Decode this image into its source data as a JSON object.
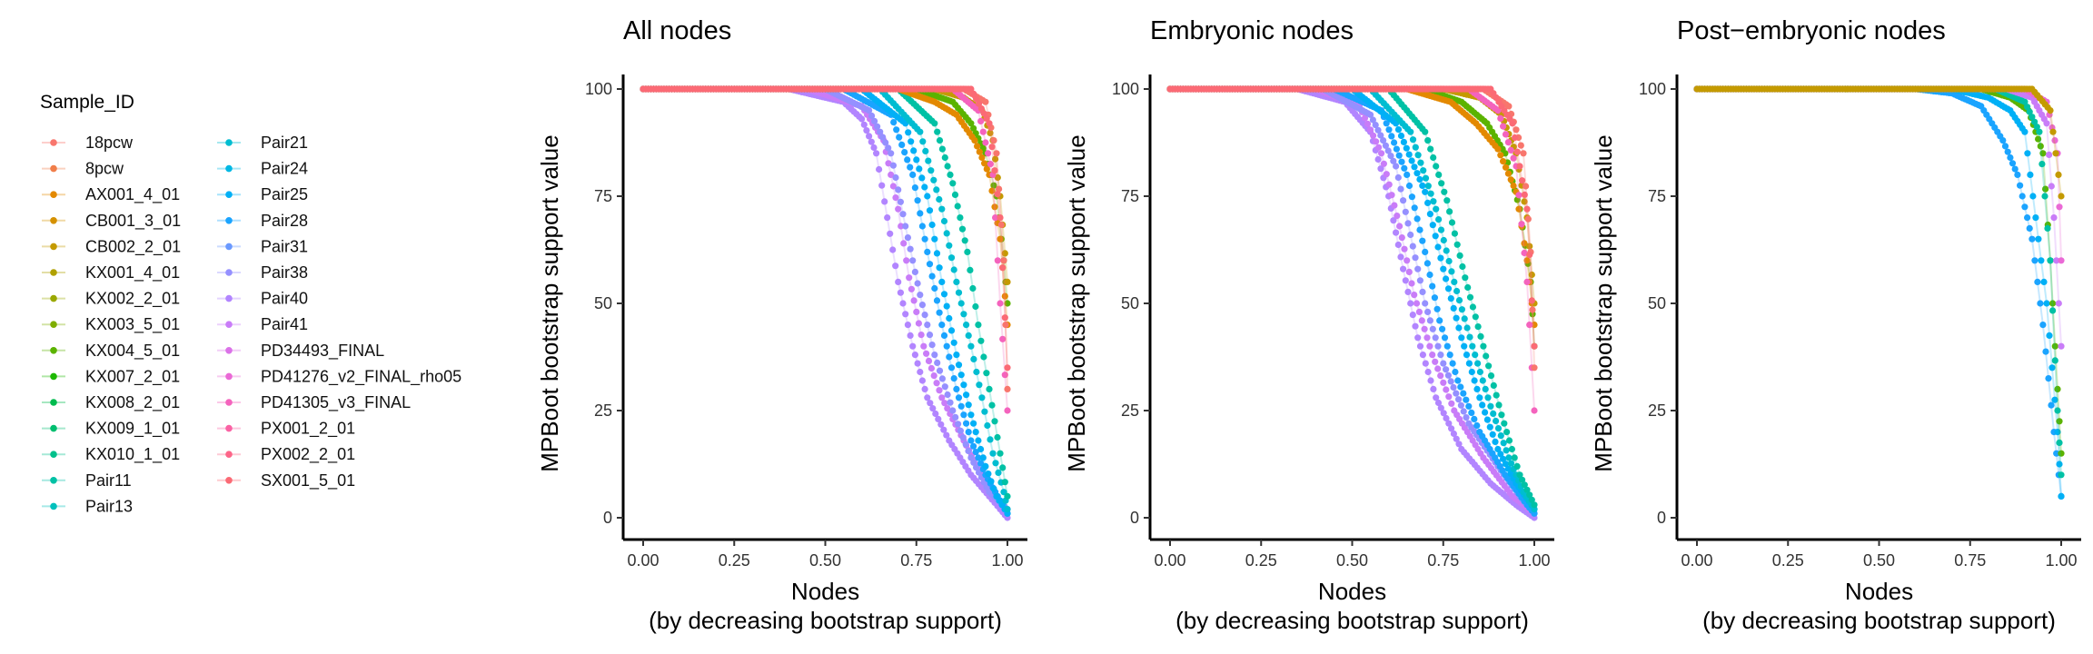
{
  "legend": {
    "title": "Sample_ID",
    "items": [
      {
        "label": "18pcw",
        "color": "#F8766D"
      },
      {
        "label": "8pcw",
        "color": "#F07E4A"
      },
      {
        "label": "AX001_4_01",
        "color": "#E38900"
      },
      {
        "label": "CB001_3_01",
        "color": "#D59100"
      },
      {
        "label": "CB002_2_01",
        "color": "#C49A00"
      },
      {
        "label": "KX001_4_01",
        "color": "#B0A100"
      },
      {
        "label": "KX002_2_01",
        "color": "#9AA800"
      },
      {
        "label": "KX003_5_01",
        "color": "#7FAE00"
      },
      {
        "label": "KX004_5_01",
        "color": "#5BB300"
      },
      {
        "label": "KX007_2_01",
        "color": "#1DB800"
      },
      {
        "label": "KX008_2_01",
        "color": "#00BB4E"
      },
      {
        "label": "KX009_1_01",
        "color": "#00BE6F"
      },
      {
        "label": "KX010_1_01",
        "color": "#00C08B"
      },
      {
        "label": "Pair11",
        "color": "#00C1A5"
      },
      {
        "label": "Pair13",
        "color": "#00C0BC"
      },
      {
        "label": "Pair21",
        "color": "#00BDD1"
      },
      {
        "label": "Pair24",
        "color": "#00B8E4"
      },
      {
        "label": "Pair25",
        "color": "#00B0F6"
      },
      {
        "label": "Pair28",
        "color": "#1BA4FF"
      },
      {
        "label": "Pair31",
        "color": "#6A99FF"
      },
      {
        "label": "Pair38",
        "color": "#9590FF"
      },
      {
        "label": "Pair40",
        "color": "#B285FF"
      },
      {
        "label": "Pair41",
        "color": "#C97CF8"
      },
      {
        "label": "PD34493_FINAL",
        "color": "#DB72E8"
      },
      {
        "label": "PD41276_v2_FINAL_rho05",
        "color": "#EA69D6"
      },
      {
        "label": "PD41305_v3_FINAL",
        "color": "#F463BD"
      },
      {
        "label": "PX001_2_01",
        "color": "#FA62A4"
      },
      {
        "label": "PX002_2_01",
        "color": "#FD6588"
      },
      {
        "label": "SX001_5_01",
        "color": "#FB6A75"
      }
    ]
  },
  "chart_data": [
    {
      "type": "scatter",
      "title": "All nodes",
      "xlabel": "Nodes",
      "xlabel2": "(by decreasing bootstrap support)",
      "ylabel": "MPBoot bootstrap support value",
      "xlim": [
        0,
        1
      ],
      "ylim": [
        0,
        100
      ],
      "xticks": [
        "0.00",
        "0.25",
        "0.50",
        "0.75",
        "1.00"
      ],
      "yticks": [
        "0",
        "25",
        "50",
        "75",
        "100"
      ],
      "grid": false,
      "series": [
        {
          "name": "Pair40",
          "x": [
            0,
            0.4,
            0.55,
            0.6,
            0.64,
            0.67,
            0.7,
            0.74,
            0.78,
            0.84,
            0.9,
            0.95,
            0.98,
            1.0
          ],
          "y": [
            100,
            100,
            97,
            93,
            85,
            70,
            55,
            40,
            28,
            18,
            10,
            5,
            2,
            0
          ]
        },
        {
          "name": "Pair41",
          "x": [
            0,
            0.45,
            0.6,
            0.66,
            0.7,
            0.73,
            0.77,
            0.82,
            0.88,
            0.93,
            0.97,
            1.0
          ],
          "y": [
            100,
            100,
            96,
            88,
            72,
            56,
            40,
            28,
            18,
            10,
            5,
            1
          ]
        },
        {
          "name": "Pair38",
          "x": [
            0,
            0.5,
            0.62,
            0.68,
            0.72,
            0.76,
            0.8,
            0.85,
            0.9,
            0.95,
            1.0
          ],
          "y": [
            100,
            100,
            95,
            85,
            68,
            52,
            38,
            25,
            14,
            6,
            2
          ]
        },
        {
          "name": "Pair28",
          "x": [
            0,
            0.55,
            0.68,
            0.74,
            0.78,
            0.82,
            0.86,
            0.9,
            0.94,
            0.98,
            1.0
          ],
          "y": [
            100,
            100,
            94,
            80,
            62,
            45,
            30,
            18,
            10,
            4,
            1
          ]
        },
        {
          "name": "Pair25",
          "x": [
            0,
            0.6,
            0.72,
            0.78,
            0.82,
            0.86,
            0.9,
            0.94,
            0.97,
            1.0
          ],
          "y": [
            100,
            100,
            92,
            75,
            55,
            38,
            24,
            12,
            5,
            1
          ]
        },
        {
          "name": "Pair21",
          "x": [
            0,
            0.65,
            0.76,
            0.82,
            0.86,
            0.9,
            0.93,
            0.96,
            0.99,
            1.0
          ],
          "y": [
            100,
            100,
            90,
            72,
            55,
            40,
            28,
            15,
            6,
            2
          ]
        },
        {
          "name": "Pair11",
          "x": [
            0,
            0.7,
            0.8,
            0.85,
            0.89,
            0.92,
            0.95,
            0.98,
            1.0
          ],
          "y": [
            100,
            100,
            92,
            78,
            62,
            45,
            30,
            15,
            5
          ]
        },
        {
          "name": "KX004_5_01",
          "x": [
            0,
            0.75,
            0.85,
            0.9,
            0.94,
            0.97,
            0.99,
            1.0
          ],
          "y": [
            100,
            100,
            97,
            92,
            85,
            75,
            60,
            50
          ]
        },
        {
          "name": "AX001_4_01",
          "x": [
            0,
            0.7,
            0.8,
            0.86,
            0.91,
            0.95,
            0.98,
            1.0
          ],
          "y": [
            100,
            100,
            97,
            94,
            88,
            80,
            65,
            45
          ]
        },
        {
          "name": "CB002_2_01",
          "x": [
            0,
            0.8,
            0.88,
            0.93,
            0.96,
            0.98,
            1.0
          ],
          "y": [
            100,
            100,
            98,
            95,
            88,
            75,
            55
          ]
        },
        {
          "name": "PD41305_v3_FINAL",
          "x": [
            0,
            0.85,
            0.92,
            0.96,
            0.98,
            1.0
          ],
          "y": [
            100,
            100,
            95,
            80,
            50,
            25
          ]
        },
        {
          "name": "18pcw",
          "x": [
            0,
            0.88,
            0.94,
            0.97,
            0.99,
            1.0
          ],
          "y": [
            100,
            100,
            97,
            85,
            60,
            30
          ]
        },
        {
          "name": "SX001_5_01",
          "x": [
            0,
            0.9,
            0.95,
            0.98,
            1.0
          ],
          "y": [
            100,
            100,
            92,
            70,
            35
          ]
        }
      ]
    },
    {
      "type": "scatter",
      "title": "Embryonic nodes",
      "xlabel": "Nodes",
      "xlabel2": "(by decreasing bootstrap support)",
      "ylabel": "MPBoot bootstrap support value",
      "xlim": [
        0,
        1
      ],
      "ylim": [
        0,
        100
      ],
      "xticks": [
        "0.00",
        "0.25",
        "0.50",
        "0.75",
        "1.00"
      ],
      "yticks": [
        "0",
        "25",
        "50",
        "75",
        "100"
      ],
      "grid": false,
      "series": [
        {
          "name": "Pair40",
          "x": [
            0,
            0.35,
            0.48,
            0.55,
            0.6,
            0.64,
            0.68,
            0.73,
            0.8,
            0.88,
            0.95,
            1.0
          ],
          "y": [
            100,
            100,
            97,
            90,
            75,
            58,
            42,
            28,
            16,
            8,
            3,
            0
          ]
        },
        {
          "name": "Pair41",
          "x": [
            0,
            0.4,
            0.52,
            0.58,
            0.63,
            0.67,
            0.72,
            0.78,
            0.86,
            0.94,
            1.0
          ],
          "y": [
            100,
            100,
            96,
            85,
            68,
            52,
            38,
            25,
            14,
            5,
            1
          ]
        },
        {
          "name": "Pair38",
          "x": [
            0,
            0.42,
            0.55,
            0.62,
            0.66,
            0.7,
            0.75,
            0.82,
            0.9,
            0.96,
            1.0
          ],
          "y": [
            100,
            100,
            94,
            82,
            66,
            50,
            36,
            22,
            12,
            5,
            1
          ]
        },
        {
          "name": "Pair28",
          "x": [
            0,
            0.45,
            0.58,
            0.65,
            0.7,
            0.74,
            0.79,
            0.85,
            0.92,
            0.98,
            1.0
          ],
          "y": [
            100,
            100,
            95,
            80,
            62,
            46,
            32,
            20,
            10,
            3,
            1
          ]
        },
        {
          "name": "Pair25",
          "x": [
            0,
            0.5,
            0.62,
            0.7,
            0.75,
            0.8,
            0.85,
            0.9,
            0.95,
            1.0
          ],
          "y": [
            100,
            100,
            92,
            76,
            58,
            42,
            28,
            16,
            8,
            2
          ]
        },
        {
          "name": "Pair21",
          "x": [
            0,
            0.55,
            0.66,
            0.73,
            0.78,
            0.83,
            0.88,
            0.93,
            0.97,
            1.0
          ],
          "y": [
            100,
            100,
            90,
            72,
            55,
            40,
            26,
            14,
            6,
            2
          ]
        },
        {
          "name": "Pair11",
          "x": [
            0,
            0.6,
            0.7,
            0.76,
            0.81,
            0.86,
            0.91,
            0.96,
            1.0
          ],
          "y": [
            100,
            100,
            90,
            74,
            56,
            40,
            24,
            10,
            3
          ]
        },
        {
          "name": "KX004_5_01",
          "x": [
            0,
            0.7,
            0.8,
            0.87,
            0.92,
            0.96,
            0.99,
            1.0
          ],
          "y": [
            100,
            100,
            97,
            92,
            85,
            72,
            55,
            40
          ]
        },
        {
          "name": "AX001_4_01",
          "x": [
            0,
            0.65,
            0.77,
            0.84,
            0.9,
            0.95,
            0.98,
            1.0
          ],
          "y": [
            100,
            100,
            97,
            92,
            86,
            76,
            60,
            45
          ]
        },
        {
          "name": "CB002_2_01",
          "x": [
            0,
            0.75,
            0.85,
            0.91,
            0.95,
            0.98,
            1.0
          ],
          "y": [
            100,
            100,
            98,
            94,
            85,
            70,
            50
          ]
        },
        {
          "name": "PD41305_v3_FINAL",
          "x": [
            0,
            0.82,
            0.9,
            0.95,
            0.98,
            1.0
          ],
          "y": [
            100,
            100,
            95,
            82,
            55,
            25
          ]
        },
        {
          "name": "18pcw",
          "x": [
            0,
            0.86,
            0.93,
            0.97,
            0.99,
            1.0
          ],
          "y": [
            100,
            100,
            96,
            85,
            62,
            35
          ]
        },
        {
          "name": "SX001_5_01",
          "x": [
            0,
            0.88,
            0.94,
            0.98,
            1.0
          ],
          "y": [
            100,
            100,
            92,
            72,
            40
          ]
        }
      ]
    },
    {
      "type": "scatter",
      "title": "Post−embryonic nodes",
      "xlabel": "Nodes",
      "xlabel2": "(by decreasing bootstrap support)",
      "ylabel": "MPBoot bootstrap support value",
      "xlim": [
        0,
        1
      ],
      "ylim": [
        0,
        100
      ],
      "xticks": [
        "0.00",
        "0.25",
        "0.50",
        "0.75",
        "1.00"
      ],
      "yticks": [
        "0",
        "25",
        "50",
        "75",
        "100"
      ],
      "grid": false,
      "series": [
        {
          "name": "Pair28",
          "x": [
            0,
            0.6,
            0.7,
            0.78,
            0.84,
            0.88,
            0.92,
            0.95,
            0.98,
            1.0
          ],
          "y": [
            100,
            100,
            99,
            96,
            88,
            80,
            65,
            45,
            20,
            5
          ]
        },
        {
          "name": "Pair25",
          "x": [
            0,
            0.7,
            0.8,
            0.86,
            0.9,
            0.93,
            0.96,
            0.99,
            1.0
          ],
          "y": [
            100,
            100,
            98,
            95,
            90,
            70,
            50,
            20,
            5
          ]
        },
        {
          "name": "KX004_5_01",
          "x": [
            0,
            0.78,
            0.86,
            0.91,
            0.95,
            0.97,
            0.99,
            1.0
          ],
          "y": [
            100,
            100,
            98,
            95,
            85,
            60,
            30,
            15
          ]
        },
        {
          "name": "Pair11",
          "x": [
            0,
            0.82,
            0.9,
            0.94,
            0.97,
            0.99,
            1.0
          ],
          "y": [
            100,
            100,
            97,
            90,
            60,
            25,
            10
          ]
        },
        {
          "name": "Pair41",
          "x": [
            0,
            0.85,
            0.92,
            0.96,
            0.98,
            1.0
          ],
          "y": [
            100,
            100,
            98,
            92,
            70,
            40
          ]
        },
        {
          "name": "PD41276_v2_FINAL_rho05",
          "x": [
            0,
            0.9,
            0.96,
            0.99,
            1.0
          ],
          "y": [
            100,
            100,
            97,
            85,
            60
          ]
        },
        {
          "name": "CB002_2_01",
          "x": [
            0,
            0.92,
            0.97,
            1.0
          ],
          "y": [
            100,
            100,
            95,
            75
          ]
        }
      ]
    }
  ]
}
